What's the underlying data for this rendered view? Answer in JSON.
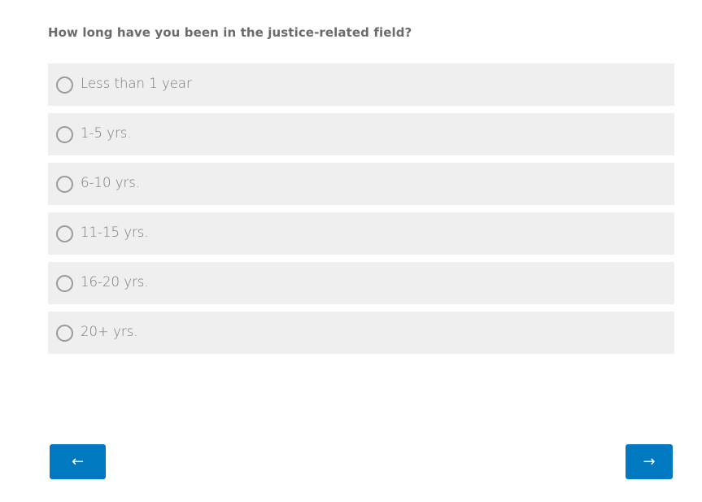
{
  "question": "How long have you been in the justice-related field?",
  "options": [
    {
      "label": "Less than 1 year",
      "selected": false
    },
    {
      "label": "1-5 yrs.",
      "selected": false
    },
    {
      "label": "6-10 yrs.",
      "selected": false
    },
    {
      "label": "11-15 yrs.",
      "selected": false
    },
    {
      "label": "16-20 yrs.",
      "selected": false
    },
    {
      "label": "20+ yrs.",
      "selected": false
    }
  ],
  "nav": {
    "back": "←",
    "next": "→"
  },
  "colors": {
    "accent": "#0079c1",
    "option_bg": "#efefef"
  }
}
